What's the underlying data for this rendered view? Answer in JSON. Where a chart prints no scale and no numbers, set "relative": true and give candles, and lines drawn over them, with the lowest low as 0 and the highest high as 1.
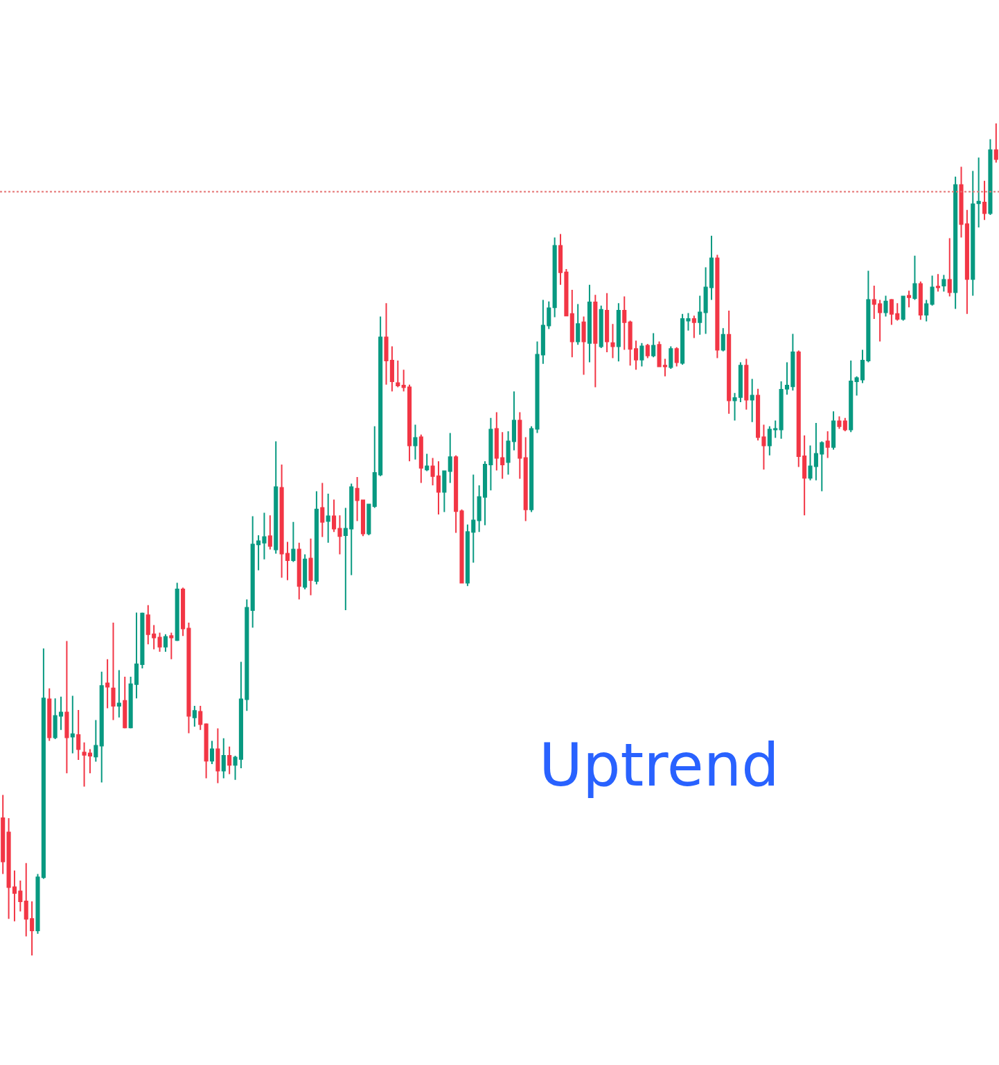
{
  "chart_data": {
    "type": "candlestick",
    "relative": true,
    "colors": [
      "#f23645",
      "#f23645",
      "#f23645",
      "#f23645",
      "#f23645",
      "#f23645",
      "#089981",
      "#089981",
      "#f23645",
      "#089981",
      "#089981",
      "#f23645",
      "#089981",
      "#f23645",
      "#f23645",
      "#f23645",
      "#089981",
      "#089981",
      "#f23645",
      "#f23645",
      "#089981",
      "#f23645",
      "#089981",
      "#089981",
      "#089981",
      "#f23645",
      "#f23645",
      "#f23645",
      "#089981",
      "#f23645",
      "#089981",
      "#f23645",
      "#f23645",
      "#089981",
      "#f23645",
      "#f23645",
      "#089981",
      "#f23645",
      "#089981",
      "#f23645",
      "#089981",
      "#089981",
      "#089981",
      "#089981",
      "#089981",
      "#089981",
      "#f23645",
      "#089981",
      "#f23645",
      "#f23645",
      "#089981",
      "#f23645",
      "#089981",
      "#f23645",
      "#089981",
      "#f23645",
      "#089981",
      "#f23645",
      "#f23645",
      "#089981",
      "#089981",
      "#f23645",
      "#f23645",
      "#089981",
      "#089981",
      "#089981",
      "#f23645",
      "#f23645",
      "#f23645",
      "#f23645",
      "#f23645",
      "#089981",
      "#f23645",
      "#089981",
      "#f23645",
      "#f23645",
      "#089981",
      "#089981",
      "#f23645",
      "#f23645",
      "#089981",
      "#089981",
      "#089981",
      "#089981",
      "#089981",
      "#f23645",
      "#f23645",
      "#089981",
      "#089981",
      "#f23645",
      "#f23645",
      "#089981",
      "#089981",
      "#089981",
      "#089981",
      "#089981",
      "#f23645",
      "#f23645",
      "#f23645",
      "#089981",
      "#f23645",
      "#089981",
      "#f23645",
      "#089981",
      "#f23645",
      "#f23645",
      "#089981",
      "#f23645",
      "#f23645",
      "#f23645",
      "#089981",
      "#f23645",
      "#089981",
      "#f23645",
      "#f23645",
      "#089981",
      "#f23645",
      "#089981",
      "#089981",
      "#f23645",
      "#089981",
      "#089981",
      "#089981",
      "#f23645",
      "#089981",
      "#f23645",
      "#089981",
      "#089981",
      "#f23645",
      "#089981",
      "#f23645",
      "#f23645",
      "#089981",
      "#089981",
      "#089981",
      "#089981",
      "#089981",
      "#f23645",
      "#f23645",
      "#089981",
      "#089981",
      "#089981",
      "#f23645",
      "#089981",
      "#f23645",
      "#f23645",
      "#089981",
      "#089981",
      "#089981",
      "#089981",
      "#f23645",
      "#f23645",
      "#089981",
      "#f23645",
      "#f23645",
      "#089981",
      "#f23645",
      "#089981",
      "#f23645",
      "#089981",
      "#089981",
      "#f23645",
      "#089981",
      "#f23645",
      "#089981",
      "#f23645",
      "#f23645",
      "#089981",
      "#089981",
      "#f23645",
      "#089981",
      "#f23645"
    ],
    "categories": [
      null,
      null,
      null,
      null,
      null,
      null,
      null,
      null,
      null,
      null,
      null,
      null,
      null,
      null,
      null,
      null,
      null,
      null,
      null,
      null,
      null,
      null,
      null,
      null,
      null,
      null,
      null,
      null,
      null,
      null,
      null,
      null,
      null,
      null,
      null,
      null,
      null,
      null,
      null,
      null,
      null,
      null,
      null,
      null,
      null,
      null,
      null,
      null,
      null,
      null,
      null,
      null,
      null,
      null,
      null,
      null,
      null,
      null,
      null,
      null,
      null,
      null,
      null,
      null,
      null,
      null,
      null,
      null,
      null,
      null,
      null,
      null,
      null,
      null,
      null,
      null,
      null,
      null,
      null,
      null,
      null,
      null,
      null,
      null,
      null,
      null,
      null,
      null,
      null,
      null,
      null,
      null,
      null,
      null,
      null,
      null,
      null,
      null,
      null,
      null,
      null,
      null,
      null,
      null,
      null,
      null,
      null,
      null,
      null,
      null,
      null,
      null,
      null,
      null,
      null,
      null,
      null,
      null,
      null,
      null,
      null,
      null,
      null,
      null,
      null,
      null,
      null,
      null,
      null,
      null,
      null,
      null,
      null,
      null,
      null,
      null,
      null,
      null,
      null,
      null,
      null,
      null,
      null,
      null,
      null,
      null,
      null,
      null,
      null,
      null,
      null,
      null,
      null,
      null,
      null,
      null,
      null,
      null,
      null,
      null,
      null,
      null,
      null,
      null,
      null,
      null,
      null,
      null,
      null,
      null,
      null,
      null
    ],
    "ohlc": [
      [
        0.165,
        0.193,
        0.098,
        0.113
      ],
      [
        0.148,
        0.165,
        0.044,
        0.082
      ],
      [
        0.082,
        0.102,
        0.041,
        0.075
      ],
      [
        0.077,
        0.09,
        0.053,
        0.065
      ],
      [
        0.065,
        0.111,
        0.023,
        0.044
      ],
      [
        0.044,
        0.065,
        0.0,
        0.03
      ],
      [
        0.03,
        0.098,
        0.026,
        0.094
      ],
      [
        0.094,
        0.369,
        0.092,
        0.309
      ],
      [
        0.308,
        0.321,
        0.258,
        0.262
      ],
      [
        0.262,
        0.309,
        0.26,
        0.288
      ],
      [
        0.288,
        0.311,
        0.271,
        0.292
      ],
      [
        0.292,
        0.378,
        0.219,
        0.262
      ],
      [
        0.263,
        0.312,
        0.243,
        0.266
      ],
      [
        0.265,
        0.295,
        0.235,
        0.248
      ],
      [
        0.244,
        0.256,
        0.203,
        0.241
      ],
      [
        0.243,
        0.248,
        0.219,
        0.24
      ],
      [
        0.239,
        0.283,
        0.233,
        0.252
      ],
      [
        0.252,
        0.341,
        0.208,
        0.324
      ],
      [
        0.327,
        0.356,
        0.297,
        0.323
      ],
      [
        0.321,
        0.4,
        0.283,
        0.3
      ],
      [
        0.3,
        0.343,
        0.286,
        0.303
      ],
      [
        0.306,
        0.335,
        0.273,
        0.274
      ],
      [
        0.274,
        0.335,
        0.273,
        0.326
      ],
      [
        0.326,
        0.412,
        0.309,
        0.35
      ],
      [
        0.35,
        0.412,
        0.345,
        0.411
      ],
      [
        0.409,
        0.421,
        0.374,
        0.386
      ],
      [
        0.386,
        0.397,
        0.368,
        0.382
      ],
      [
        0.382,
        0.388,
        0.365,
        0.371
      ],
      [
        0.371,
        0.386,
        0.365,
        0.383
      ],
      [
        0.384,
        0.388,
        0.356,
        0.382
      ],
      [
        0.379,
        0.448,
        0.378,
        0.44
      ],
      [
        0.44,
        0.442,
        0.384,
        0.393
      ],
      [
        0.393,
        0.4,
        0.267,
        0.288
      ],
      [
        0.286,
        0.3,
        0.275,
        0.294
      ],
      [
        0.293,
        0.3,
        0.271,
        0.278
      ],
      [
        0.278,
        0.279,
        0.213,
        0.234
      ],
      [
        0.234,
        0.258,
        0.23,
        0.248
      ],
      [
        0.248,
        0.273,
        0.207,
        0.222
      ],
      [
        0.222,
        0.261,
        0.213,
        0.24
      ],
      [
        0.24,
        0.251,
        0.218,
        0.229
      ],
      [
        0.229,
        0.24,
        0.211,
        0.238
      ],
      [
        0.236,
        0.353,
        0.225,
        0.308
      ],
      [
        0.308,
        0.428,
        0.294,
        0.418
      ],
      [
        0.415,
        0.528,
        0.394,
        0.494
      ],
      [
        0.494,
        0.505,
        0.463,
        0.498
      ],
      [
        0.496,
        0.532,
        0.476,
        0.503
      ],
      [
        0.504,
        0.529,
        0.488,
        0.492
      ],
      [
        0.488,
        0.618,
        0.483,
        0.563
      ],
      [
        0.562,
        0.59,
        0.454,
        0.483
      ],
      [
        0.483,
        0.497,
        0.451,
        0.475
      ],
      [
        0.475,
        0.521,
        0.473,
        0.488
      ],
      [
        0.488,
        0.496,
        0.428,
        0.444
      ],
      [
        0.443,
        0.482,
        0.44,
        0.476
      ],
      [
        0.477,
        0.501,
        0.433,
        0.451
      ],
      [
        0.45,
        0.558,
        0.446,
        0.536
      ],
      [
        0.538,
        0.568,
        0.503,
        0.521
      ],
      [
        0.522,
        0.555,
        0.496,
        0.528
      ],
      [
        0.528,
        0.548,
        0.509,
        0.513
      ],
      [
        0.513,
        0.529,
        0.482,
        0.504
      ],
      [
        0.505,
        0.538,
        0.415,
        0.513
      ],
      [
        0.513,
        0.567,
        0.457,
        0.563
      ],
      [
        0.561,
        0.575,
        0.522,
        0.547
      ],
      [
        0.547,
        0.548,
        0.504,
        0.507
      ],
      [
        0.507,
        0.543,
        0.505,
        0.542
      ],
      [
        0.54,
        0.636,
        0.538,
        0.58
      ],
      [
        0.578,
        0.768,
        0.576,
        0.743
      ],
      [
        0.743,
        0.784,
        0.686,
        0.715
      ],
      [
        0.715,
        0.732,
        0.678,
        0.69
      ],
      [
        0.688,
        0.715,
        0.683,
        0.685
      ],
      [
        0.685,
        0.704,
        0.678,
        0.683
      ],
      [
        0.683,
        0.686,
        0.594,
        0.613
      ],
      [
        0.613,
        0.638,
        0.596,
        0.622
      ],
      [
        0.623,
        0.626,
        0.568,
        0.586
      ],
      [
        0.584,
        0.603,
        0.582,
        0.588
      ],
      [
        0.588,
        0.598,
        0.565,
        0.576
      ],
      [
        0.576,
        0.594,
        0.53,
        0.557
      ],
      [
        0.557,
        0.583,
        0.533,
        0.582
      ],
      [
        0.582,
        0.628,
        0.568,
        0.599
      ],
      [
        0.599,
        0.601,
        0.508,
        0.534
      ],
      [
        0.534,
        0.536,
        0.447,
        0.448
      ],
      [
        0.448,
        0.518,
        0.444,
        0.509
      ],
      [
        0.509,
        0.578,
        0.472,
        0.523
      ],
      [
        0.523,
        0.565,
        0.509,
        0.551
      ],
      [
        0.551,
        0.594,
        0.517,
        0.59
      ],
      [
        0.59,
        0.646,
        0.559,
        0.632
      ],
      [
        0.633,
        0.653,
        0.583,
        0.598
      ],
      [
        0.598,
        0.629,
        0.573,
        0.59
      ],
      [
        0.593,
        0.63,
        0.578,
        0.618
      ],
      [
        0.618,
        0.678,
        0.607,
        0.643
      ],
      [
        0.643,
        0.653,
        0.573,
        0.598
      ],
      [
        0.598,
        0.623,
        0.522,
        0.536
      ],
      [
        0.536,
        0.636,
        0.533,
        0.633
      ],
      [
        0.633,
        0.738,
        0.628,
        0.722
      ],
      [
        0.722,
        0.788,
        0.711,
        0.757
      ],
      [
        0.757,
        0.786,
        0.753,
        0.778
      ],
      [
        0.779,
        0.863,
        0.767,
        0.853
      ],
      [
        0.853,
        0.867,
        0.806,
        0.821
      ],
      [
        0.821,
        0.825,
        0.769,
        0.769
      ],
      [
        0.771,
        0.8,
        0.719,
        0.738
      ],
      [
        0.738,
        0.783,
        0.734,
        0.759
      ],
      [
        0.761,
        0.768,
        0.698,
        0.738
      ],
      [
        0.736,
        0.806,
        0.713,
        0.785
      ],
      [
        0.785,
        0.794,
        0.683,
        0.736
      ],
      [
        0.732,
        0.781,
        0.73,
        0.776
      ],
      [
        0.775,
        0.796,
        0.725,
        0.738
      ],
      [
        0.736,
        0.759,
        0.718,
        0.732
      ],
      [
        0.732,
        0.784,
        0.714,
        0.775
      ],
      [
        0.775,
        0.792,
        0.728,
        0.761
      ],
      [
        0.761,
        0.763,
        0.709,
        0.729
      ],
      [
        0.729,
        0.739,
        0.704,
        0.716
      ],
      [
        0.716,
        0.736,
        0.708,
        0.732
      ],
      [
        0.733,
        0.735,
        0.718,
        0.721
      ],
      [
        0.721,
        0.748,
        0.719,
        0.733
      ],
      [
        0.734,
        0.738,
        0.707,
        0.708
      ],
      [
        0.709,
        0.717,
        0.696,
        0.708
      ],
      [
        0.707,
        0.732,
        0.705,
        0.729
      ],
      [
        0.729,
        0.731,
        0.708,
        0.713
      ],
      [
        0.712,
        0.771,
        0.71,
        0.765
      ],
      [
        0.763,
        0.772,
        0.751,
        0.765
      ],
      [
        0.765,
        0.769,
        0.742,
        0.761
      ],
      [
        0.761,
        0.793,
        0.746,
        0.773
      ],
      [
        0.773,
        0.827,
        0.747,
        0.803
      ],
      [
        0.803,
        0.865,
        0.788,
        0.838
      ],
      [
        0.838,
        0.842,
        0.718,
        0.728
      ],
      [
        0.728,
        0.754,
        0.726,
        0.746
      ],
      [
        0.746,
        0.775,
        0.651,
        0.667
      ],
      [
        0.667,
        0.676,
        0.643,
        0.67
      ],
      [
        0.671,
        0.713,
        0.665,
        0.709
      ],
      [
        0.709,
        0.717,
        0.656,
        0.668
      ],
      [
        0.668,
        0.693,
        0.641,
        0.673
      ],
      [
        0.673,
        0.681,
        0.619,
        0.623
      ],
      [
        0.623,
        0.638,
        0.584,
        0.613
      ],
      [
        0.613,
        0.636,
        0.601,
        0.632
      ],
      [
        0.632,
        0.643,
        0.622,
        0.633
      ],
      [
        0.632,
        0.69,
        0.621,
        0.68
      ],
      [
        0.681,
        0.713,
        0.674,
        0.685
      ],
      [
        0.684,
        0.747,
        0.679,
        0.725
      ],
      [
        0.725,
        0.727,
        0.587,
        0.6
      ],
      [
        0.6,
        0.625,
        0.529,
        0.574
      ],
      [
        0.574,
        0.613,
        0.571,
        0.588
      ],
      [
        0.588,
        0.64,
        0.571,
        0.603
      ],
      [
        0.603,
        0.618,
        0.558,
        0.616
      ],
      [
        0.618,
        0.63,
        0.598,
        0.611
      ],
      [
        0.611,
        0.654,
        0.608,
        0.642
      ],
      [
        0.642,
        0.648,
        0.633,
        0.636
      ],
      [
        0.642,
        0.646,
        0.63,
        0.632
      ],
      [
        0.632,
        0.715,
        0.629,
        0.69
      ],
      [
        0.69,
        0.696,
        0.673,
        0.694
      ],
      [
        0.692,
        0.728,
        0.688,
        0.715
      ],
      [
        0.715,
        0.823,
        0.713,
        0.788
      ],
      [
        0.788,
        0.805,
        0.765,
        0.783
      ],
      [
        0.783,
        0.788,
        0.738,
        0.773
      ],
      [
        0.773,
        0.793,
        0.768,
        0.786
      ],
      [
        0.788,
        0.789,
        0.758,
        0.771
      ],
      [
        0.771,
        0.784,
        0.763,
        0.765
      ],
      [
        0.765,
        0.793,
        0.763,
        0.792
      ],
      [
        0.793,
        0.799,
        0.779,
        0.791
      ],
      [
        0.79,
        0.841,
        0.788,
        0.807
      ],
      [
        0.807,
        0.81,
        0.764,
        0.77
      ],
      [
        0.77,
        0.788,
        0.762,
        0.783
      ],
      [
        0.783,
        0.817,
        0.781,
        0.803
      ],
      [
        0.804,
        0.819,
        0.798,
        0.803
      ],
      [
        0.805,
        0.818,
        0.798,
        0.812
      ],
      [
        0.812,
        0.862,
        0.792,
        0.797
      ],
      [
        0.797,
        0.936,
        0.777,
        0.926
      ],
      [
        0.926,
        0.948,
        0.863,
        0.879
      ],
      [
        0.879,
        0.896,
        0.771,
        0.813
      ],
      [
        0.813,
        0.943,
        0.793,
        0.903
      ],
      [
        0.904,
        0.959,
        0.875,
        0.906
      ],
      [
        0.905,
        0.931,
        0.884,
        0.892
      ],
      [
        0.892,
        0.981,
        0.89,
        0.968
      ],
      [
        0.968,
        1.0,
        0.953,
        0.957
      ]
    ],
    "ref_lines": [
      {
        "axis": "y",
        "value": 0.918,
        "color": "#e57373",
        "line_style": "dotted"
      }
    ],
    "annotations": [
      "Uptrend"
    ]
  }
}
